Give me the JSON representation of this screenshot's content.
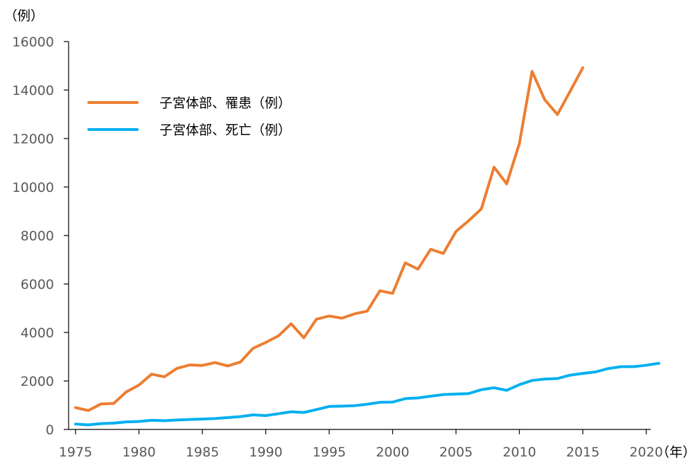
{
  "chart_data": {
    "type": "line",
    "y_unit_label": "（例）",
    "x_unit_label": "（年）",
    "xlim": [
      1975,
      2021
    ],
    "ylim": [
      0,
      16000
    ],
    "y_ticks": [
      0,
      2000,
      4000,
      6000,
      8000,
      10000,
      12000,
      14000,
      16000
    ],
    "x_ticks": [
      1975,
      1980,
      1985,
      1990,
      1995,
      2000,
      2005,
      2010,
      2015,
      2020
    ],
    "grid": false,
    "legend_position": "top-left",
    "series": [
      {
        "name": "子宮体部、罹患（例）",
        "color": "#ED7D31",
        "x": [
          1975,
          1976,
          1977,
          1978,
          1979,
          1980,
          1981,
          1982,
          1983,
          1984,
          1985,
          1986,
          1987,
          1988,
          1989,
          1990,
          1991,
          1992,
          1993,
          1994,
          1995,
          1996,
          1997,
          1998,
          1999,
          2000,
          2001,
          2002,
          2003,
          2004,
          2005,
          2006,
          2007,
          2008,
          2009,
          2010,
          2011,
          2012,
          2013,
          2014,
          2015
        ],
        "values": [
          900,
          780,
          1050,
          1070,
          1550,
          1830,
          2280,
          2170,
          2520,
          2660,
          2640,
          2760,
          2620,
          2780,
          3350,
          3590,
          3860,
          4360,
          3780,
          4550,
          4680,
          4590,
          4770,
          4880,
          5720,
          5610,
          6870,
          6610,
          7430,
          7260,
          8170,
          8610,
          9100,
          10820,
          10130,
          11800,
          14770,
          13600,
          12990,
          13950,
          14920
        ]
      },
      {
        "name": "子宮体部、死亡（例）",
        "color": "#00B0F0",
        "x": [
          1975,
          1976,
          1977,
          1978,
          1979,
          1980,
          1981,
          1982,
          1983,
          1984,
          1985,
          1986,
          1987,
          1988,
          1989,
          1990,
          1991,
          1992,
          1993,
          1994,
          1995,
          1996,
          1997,
          1998,
          1999,
          2000,
          2001,
          2002,
          2003,
          2004,
          2005,
          2006,
          2007,
          2008,
          2009,
          2010,
          2011,
          2012,
          2013,
          2014,
          2015,
          2016,
          2017,
          2018,
          2019,
          2020,
          2021
        ],
        "values": [
          220,
          190,
          240,
          260,
          310,
          330,
          380,
          360,
          390,
          410,
          430,
          450,
          490,
          530,
          600,
          570,
          650,
          730,
          700,
          820,
          950,
          960,
          980,
          1040,
          1120,
          1130,
          1270,
          1300,
          1370,
          1440,
          1460,
          1480,
          1640,
          1720,
          1610,
          1850,
          2020,
          2080,
          2100,
          2240,
          2310,
          2370,
          2510,
          2590,
          2590,
          2650,
          2730
        ]
      }
    ]
  }
}
